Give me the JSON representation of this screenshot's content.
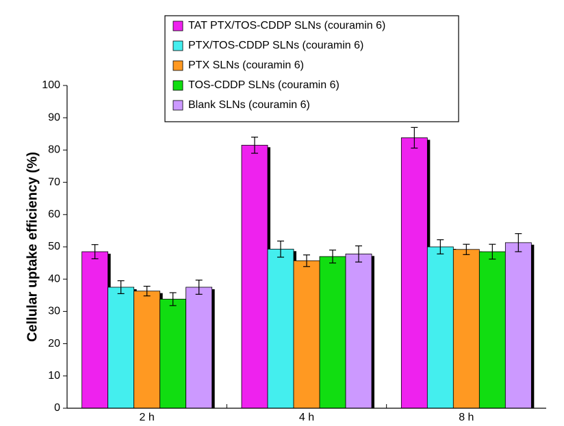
{
  "chart_data": {
    "type": "bar",
    "y_label": "Cellular uptake efficiency (%)",
    "categories": [
      "2 h",
      "4 h",
      "8 h"
    ],
    "series": [
      {
        "name": "TAT PTX/TOS-CDDP SLNs (couramin 6)",
        "color": "#ee22ee",
        "values": [
          48.5,
          81.5,
          83.8
        ],
        "errors": [
          2.2,
          2.5,
          3.2
        ]
      },
      {
        "name": "PTX/TOS-CDDP SLNs (couramin 6)",
        "color": "#44eeee",
        "values": [
          37.5,
          49.3,
          50.0
        ],
        "errors": [
          2.0,
          2.5,
          2.2
        ]
      },
      {
        "name": "PTX SLNs (couramin 6)",
        "color": "#ff9922",
        "values": [
          36.3,
          45.7,
          49.2
        ],
        "errors": [
          1.5,
          1.8,
          1.6
        ]
      },
      {
        "name": "TOS-CDDP SLNs (couramin 6)",
        "color": "#11dd11",
        "values": [
          33.8,
          47.0,
          48.5
        ],
        "errors": [
          2.0,
          2.0,
          2.3
        ]
      },
      {
        "name": "Blank SLNs (couramin 6)",
        "color": "#cc99ff",
        "values": [
          37.5,
          47.8,
          51.3
        ],
        "errors": [
          2.2,
          2.5,
          2.8
        ]
      }
    ],
    "ylim": [
      0,
      100
    ],
    "yticks": [
      0,
      10,
      20,
      30,
      40,
      50,
      60,
      70,
      80,
      90,
      100
    ],
    "legend": "top"
  }
}
